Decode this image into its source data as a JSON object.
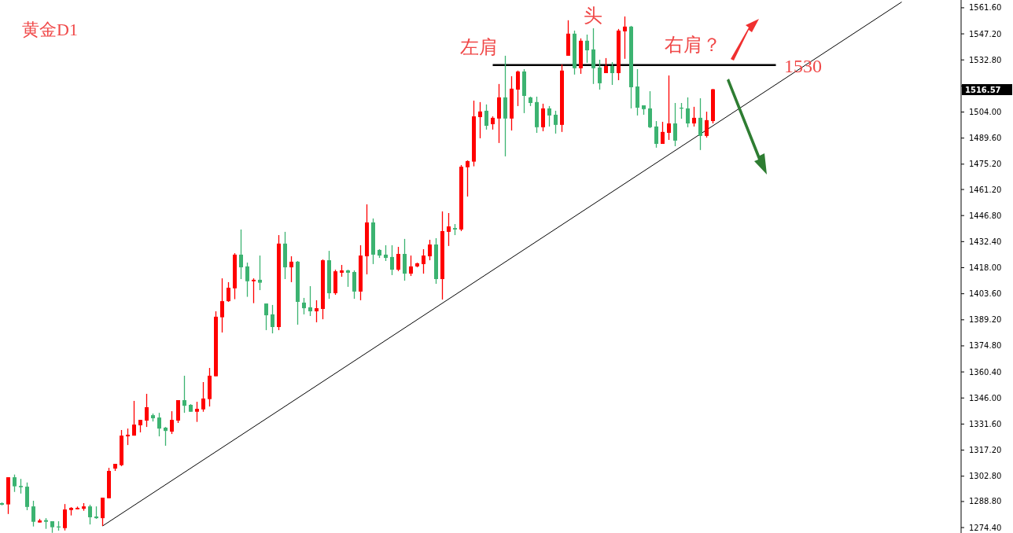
{
  "chart_data": {
    "type": "candlestick",
    "title": "黄金D1",
    "categories": [
      null,
      null,
      null,
      null,
      null,
      null,
      null,
      null,
      null,
      null,
      null,
      null,
      null,
      null,
      null,
      null,
      null,
      null,
      null,
      null,
      null,
      null,
      null,
      null,
      null,
      null,
      null,
      null,
      null,
      null,
      null,
      null,
      null,
      null,
      null,
      null,
      null,
      null,
      null,
      null,
      null,
      null,
      null,
      null,
      null,
      null,
      null,
      null,
      null,
      null,
      null,
      null,
      null,
      null,
      null,
      null,
      null,
      null,
      null,
      null,
      null,
      null,
      null,
      null,
      null,
      null,
      null,
      null,
      null,
      null,
      null,
      null,
      null,
      null,
      null,
      null,
      null,
      null,
      null,
      null,
      null,
      null,
      null,
      null,
      null,
      null,
      null,
      null,
      null,
      null,
      null,
      null,
      null,
      null,
      null,
      null,
      null,
      null,
      null,
      null,
      null,
      null,
      null,
      null,
      null,
      null,
      null,
      null,
      null,
      null,
      null,
      null,
      null,
      null,
      null,
      null,
      null,
      null,
      null,
      null,
      null,
      null,
      null,
      null,
      null,
      null,
      null,
      null,
      null,
      null,
      null,
      null,
      null,
      null,
      null,
      null,
      null,
      null,
      null,
      null,
      null,
      null,
      null,
      null,
      null,
      null,
      null,
      null,
      null,
      null,
      null,
      null,
      null
    ],
    "ohlc": [
      [
        1287.9,
        1288.3,
        1286.7,
        1287.0
      ],
      [
        1287.2,
        1302.2,
        1281.9,
        1302.2
      ],
      [
        1302.2,
        1303.7,
        1294.1,
        1297.2
      ],
      [
        1297.4,
        1301.3,
        1293.2,
        1296.7
      ],
      [
        1297.0,
        1299.3,
        1284.0,
        1285.8
      ],
      [
        1286.1,
        1289.2,
        1275.0,
        1277.6
      ],
      [
        1277.2,
        1279.2,
        1277.2,
        1278.3
      ],
      [
        1278.5,
        1279.6,
        1273.7,
        1277.6
      ],
      [
        1277.9,
        1277.9,
        1271.5,
        1274.6
      ],
      [
        1275.0,
        1277.9,
        1272.7,
        1274.6
      ],
      [
        1274.1,
        1287.4,
        1272.8,
        1284.4
      ],
      [
        1284.1,
        1285.7,
        1281.1,
        1285.3
      ],
      [
        1284.5,
        1286.0,
        1284.5,
        1285.3
      ],
      [
        1284.8,
        1287.9,
        1283.7,
        1286.1
      ],
      [
        1286.1,
        1287.0,
        1276.1,
        1280.1
      ],
      [
        1280.5,
        1286.1,
        1279.2,
        1279.6
      ],
      [
        1279.6,
        1290.9,
        1275.3,
        1290.9
      ],
      [
        1290.6,
        1307.4,
        1290.6,
        1305.7
      ],
      [
        1307.0,
        1309.6,
        1305.7,
        1309.6
      ],
      [
        1308.9,
        1328.3,
        1308.3,
        1325.2
      ],
      [
        1324.8,
        1329.1,
        1320.0,
        1325.7
      ],
      [
        1325.2,
        1344.4,
        1325.2,
        1331.3
      ],
      [
        1330.9,
        1333.9,
        1327.0,
        1333.9
      ],
      [
        1333.5,
        1348.3,
        1330.0,
        1340.9
      ],
      [
        1336.5,
        1337.4,
        1333.0,
        1334.8
      ],
      [
        1335.2,
        1337.8,
        1324.8,
        1329.1
      ],
      [
        1329.6,
        1330.0,
        1319.6,
        1327.8
      ],
      [
        1327.4,
        1338.7,
        1326.1,
        1333.9
      ],
      [
        1333.5,
        1344.8,
        1332.2,
        1344.8
      ],
      [
        1344.8,
        1358.3,
        1337.8,
        1341.7
      ],
      [
        1342.2,
        1342.6,
        1338.4,
        1338.4
      ],
      [
        1338.4,
        1343.9,
        1332.8,
        1340.0
      ],
      [
        1339.7,
        1354.8,
        1338.4,
        1345.7
      ],
      [
        1345.4,
        1362.6,
        1341.3,
        1358.3
      ],
      [
        1358.0,
        1393.9,
        1358.0,
        1390.9
      ],
      [
        1390.6,
        1412.1,
        1382.2,
        1399.5
      ],
      [
        1399.5,
        1410.0,
        1399.1,
        1406.9
      ],
      [
        1406.6,
        1426.0,
        1400.6,
        1425.2
      ],
      [
        1425.2,
        1439.1,
        1411.7,
        1418.2
      ],
      [
        1418.7,
        1420.8,
        1401.9,
        1410.5
      ],
      [
        1410.5,
        1412.1,
        1398.4,
        1411.3
      ],
      [
        1411.3,
        1424.7,
        1405.6,
        1409.7
      ],
      [
        1398.2,
        1398.2,
        1383.5,
        1391.7
      ],
      [
        1392.2,
        1397.4,
        1381.7,
        1385.2
      ],
      [
        1385.2,
        1436.0,
        1383.5,
        1431.3
      ],
      [
        1431.3,
        1437.8,
        1411.7,
        1418.2
      ],
      [
        1418.2,
        1424.3,
        1410.0,
        1421.3
      ],
      [
        1421.3,
        1421.7,
        1386.5,
        1399.1
      ],
      [
        1398.7,
        1401.3,
        1392.2,
        1395.6
      ],
      [
        1396.1,
        1407.8,
        1391.3,
        1393.9
      ],
      [
        1393.9,
        1400.0,
        1387.8,
        1395.6
      ],
      [
        1395.2,
        1422.6,
        1389.5,
        1422.1
      ],
      [
        1422.1,
        1427.3,
        1400.8,
        1403.9
      ],
      [
        1403.9,
        1416.9,
        1403.0,
        1416.0
      ],
      [
        1415.2,
        1419.5,
        1413.0,
        1416.5
      ],
      [
        1416.5,
        1416.9,
        1407.4,
        1415.2
      ],
      [
        1415.6,
        1416.5,
        1400.8,
        1404.8
      ],
      [
        1404.8,
        1430.4,
        1400.0,
        1424.7
      ],
      [
        1424.3,
        1453.0,
        1414.3,
        1443.0
      ],
      [
        1443.0,
        1445.2,
        1420.0,
        1425.2
      ],
      [
        1427.8,
        1428.2,
        1423.4,
        1424.7
      ],
      [
        1425.2,
        1430.4,
        1421.7,
        1423.4
      ],
      [
        1423.9,
        1430.4,
        1413.9,
        1416.9
      ],
      [
        1416.9,
        1429.5,
        1416.1,
        1425.6
      ],
      [
        1425.6,
        1433.9,
        1410.8,
        1414.7
      ],
      [
        1414.7,
        1424.7,
        1413.4,
        1418.7
      ],
      [
        1418.7,
        1420.8,
        1418.2,
        1420.4
      ],
      [
        1420.0,
        1428.2,
        1414.7,
        1424.7
      ],
      [
        1424.3,
        1433.4,
        1422.1,
        1430.8
      ],
      [
        1430.8,
        1434.3,
        1409.1,
        1411.7
      ],
      [
        1411.7,
        1449.1,
        1400.4,
        1438.2
      ],
      [
        1437.8,
        1448.2,
        1430.0,
        1440.8
      ],
      [
        1439.9,
        1442.1,
        1436.0,
        1439.1
      ],
      [
        1439.1,
        1474.7,
        1438.2,
        1473.8
      ],
      [
        1473.5,
        1477.3,
        1457.3,
        1476.9
      ],
      [
        1476.6,
        1510.3,
        1474.0,
        1501.6
      ],
      [
        1501.2,
        1509.5,
        1489.5,
        1504.3
      ],
      [
        1504.7,
        1508.2,
        1494.3,
        1496.4
      ],
      [
        1497.3,
        1501.6,
        1494.3,
        1500.8
      ],
      [
        1500.4,
        1519.5,
        1486.9,
        1512.1
      ],
      [
        1512.1,
        1535.1,
        1479.5,
        1500.4
      ],
      [
        1500.4,
        1523.8,
        1493.8,
        1516.9
      ],
      [
        1516.4,
        1526.9,
        1507.3,
        1526.4
      ],
      [
        1526.4,
        1527.7,
        1503.4,
        1512.9
      ],
      [
        1512.1,
        1512.5,
        1507.3,
        1509.0
      ],
      [
        1509.5,
        1512.5,
        1492.5,
        1495.6
      ],
      [
        1495.6,
        1508.6,
        1493.4,
        1506.0
      ],
      [
        1506.0,
        1507.3,
        1496.0,
        1502.1
      ],
      [
        1502.5,
        1504.7,
        1492.1,
        1496.9
      ],
      [
        1496.9,
        1530.3,
        1493.0,
        1526.9
      ],
      [
        1535.1,
        1554.7,
        1535.1,
        1547.3
      ],
      [
        1547.3,
        1549.0,
        1524.7,
        1528.2
      ],
      [
        1528.2,
        1544.7,
        1525.1,
        1543.4
      ],
      [
        1543.4,
        1546.8,
        1531.2,
        1538.1
      ],
      [
        1538.6,
        1550.3,
        1519.5,
        1528.2
      ],
      [
        1528.6,
        1532.9,
        1516.4,
        1519.9
      ],
      [
        1525.5,
        1533.8,
        1525.5,
        1529.4
      ],
      [
        1529.4,
        1531.6,
        1519.0,
        1525.5
      ],
      [
        1525.5,
        1549.9,
        1521.6,
        1549.0
      ],
      [
        1548.6,
        1556.8,
        1533.4,
        1551.2
      ],
      [
        1551.2,
        1551.6,
        1506.0,
        1517.7
      ],
      [
        1518.1,
        1527.7,
        1502.1,
        1506.4
      ],
      [
        1507.7,
        1507.7,
        1502.5,
        1505.6
      ],
      [
        1506.0,
        1515.5,
        1495.1,
        1495.6
      ],
      [
        1496.0,
        1499.0,
        1484.3,
        1486.4
      ],
      [
        1486.4,
        1498.6,
        1486.4,
        1493.0
      ],
      [
        1492.5,
        1524.2,
        1488.6,
        1497.7
      ],
      [
        1497.7,
        1509.0,
        1485.1,
        1488.2
      ],
      [
        1506.4,
        1509.0,
        1500.3,
        1506.0
      ],
      [
        1506.0,
        1512.1,
        1495.6,
        1497.7
      ],
      [
        1497.7,
        1506.9,
        1496.0,
        1500.8
      ],
      [
        1500.8,
        1511.6,
        1483.0,
        1490.8
      ],
      [
        1490.8,
        1504.2,
        1489.9,
        1499.5
      ],
      [
        1499.0,
        1516.8,
        1497.7,
        1516.57
      ],
      null,
      null,
      null,
      null,
      null,
      null,
      null,
      null,
      null,
      null,
      null,
      null,
      null,
      null,
      null,
      null,
      null,
      null,
      null,
      null,
      null,
      null,
      null,
      null,
      null,
      null,
      null,
      null,
      null,
      null,
      null,
      null,
      null,
      null,
      null,
      null,
      null,
      null,
      null
    ],
    "colors": [
      "#3cb371",
      "#ff0000",
      "#3cb371",
      "#3cb371",
      "#3cb371",
      "#3cb371",
      "#ff0000",
      "#3cb371",
      "#3cb371",
      "#3cb371",
      "#ff0000",
      "#ff0000",
      "#ff0000",
      "#ff0000",
      "#3cb371",
      "#3cb371",
      "#ff0000",
      "#ff0000",
      "#ff0000",
      "#ff0000",
      "#ff0000",
      "#ff0000",
      "#ff0000",
      "#ff0000",
      "#3cb371",
      "#3cb371",
      "#3cb371",
      "#ff0000",
      "#ff0000",
      "#3cb371",
      "#3cb371",
      "#ff0000",
      "#ff0000",
      "#ff0000",
      "#ff0000",
      "#ff0000",
      "#ff0000",
      "#ff0000",
      "#3cb371",
      "#3cb371",
      "#ff0000",
      "#3cb371",
      "#3cb371",
      "#3cb371",
      "#ff0000",
      "#3cb371",
      "#ff0000",
      "#3cb371",
      "#3cb371",
      "#3cb371",
      "#ff0000",
      "#ff0000",
      "#3cb371",
      "#ff0000",
      "#ff0000",
      "#3cb371",
      "#3cb371",
      "#ff0000",
      "#ff0000",
      "#3cb371",
      "#3cb371",
      "#3cb371",
      "#3cb371",
      "#ff0000",
      "#3cb371",
      "#ff0000",
      "#ff0000",
      "#ff0000",
      "#ff0000",
      "#3cb371",
      "#ff0000",
      "#ff0000",
      "#3cb371",
      "#ff0000",
      "#ff0000",
      "#ff0000",
      "#ff0000",
      "#3cb371",
      "#ff0000",
      "#ff0000",
      "#3cb371",
      "#ff0000",
      "#ff0000",
      "#3cb371",
      "#3cb371",
      "#3cb371",
      "#ff0000",
      "#3cb371",
      "#3cb371",
      "#ff0000",
      "#ff0000",
      "#3cb371",
      "#ff0000",
      "#3cb371",
      "#3cb371",
      "#3cb371",
      "#ff0000",
      "#3cb371",
      "#ff0000",
      "#ff0000",
      "#3cb371",
      "#3cb371",
      "#3cb371",
      "#3cb371",
      "#3cb371",
      "#ff0000",
      "#ff0000",
      "#3cb371",
      "#3cb371",
      "#3cb371",
      "#ff0000",
      "#3cb371",
      "#ff0000",
      "#ff0000",
      null,
      null,
      null,
      null,
      null,
      null,
      null,
      null,
      null,
      null,
      null,
      null,
      null,
      null,
      null,
      null,
      null,
      null,
      null,
      null,
      null,
      null,
      null,
      null,
      null,
      null,
      null,
      null,
      null,
      null,
      null,
      null,
      null,
      null,
      null,
      null,
      null,
      null,
      null
    ],
    "series": [
      {
        "type": "line",
        "values": [
          null,
          null,
          null,
          null,
          null,
          null,
          null,
          null,
          null,
          null,
          null,
          null,
          null,
          null,
          null,
          null,
          1275.3,
          null,
          null,
          null,
          null,
          null,
          null,
          null,
          null,
          null,
          null,
          null,
          null,
          null,
          null,
          null,
          null,
          null,
          null,
          null,
          null,
          null,
          null,
          null,
          null,
          null,
          null,
          null,
          null,
          null,
          null,
          null,
          null,
          null,
          null,
          null,
          null,
          null,
          null,
          null,
          null,
          null,
          null,
          null,
          null,
          null,
          null,
          null,
          null,
          null,
          null,
          null,
          null,
          null,
          null,
          null,
          null,
          null,
          null,
          null,
          null,
          null,
          null,
          null,
          null,
          null,
          null,
          null,
          null,
          null,
          null,
          null,
          null,
          null,
          null,
          null,
          null,
          null,
          null,
          null,
          null,
          null,
          null,
          null,
          null,
          null,
          null,
          null,
          null,
          null,
          null,
          null,
          null,
          null,
          null,
          null,
          null,
          null,
          null,
          null,
          null,
          null,
          null,
          null,
          null,
          null,
          null,
          null,
          null,
          null,
          null,
          null,
          null,
          null,
          null,
          null,
          null,
          null,
          null,
          null,
          null,
          null,
          null,
          null,
          null,
          null,
          null,
          1564.8,
          null,
          null,
          null,
          null,
          null,
          null,
          null,
          null,
          null
        ],
        "color": "#000000"
      },
      {
        "type": "line",
        "values": [
          null,
          null,
          null,
          null,
          null,
          null,
          null,
          null,
          null,
          null,
          null,
          null,
          null,
          null,
          null,
          null,
          null,
          null,
          null,
          null,
          null,
          null,
          null,
          null,
          null,
          null,
          null,
          null,
          null,
          null,
          null,
          null,
          null,
          null,
          null,
          null,
          null,
          null,
          null,
          null,
          null,
          null,
          null,
          null,
          null,
          null,
          null,
          null,
          null,
          null,
          null,
          null,
          null,
          null,
          null,
          null,
          null,
          null,
          null,
          null,
          null,
          null,
          null,
          null,
          null,
          null,
          null,
          null,
          null,
          null,
          null,
          null,
          null,
          null,
          null,
          null,
          null,
          null,
          1530,
          null,
          null,
          null,
          null,
          null,
          null,
          null,
          null,
          null,
          null,
          null,
          null,
          null,
          null,
          null,
          null,
          null,
          null,
          null,
          null,
          null,
          null,
          null,
          null,
          null,
          null,
          null,
          null,
          null,
          null,
          null,
          null,
          null,
          null,
          null,
          null,
          null,
          null,
          null,
          null,
          null,
          null,
          null,
          null,
          1530,
          null,
          null,
          null,
          null,
          null,
          null,
          null,
          null,
          null,
          null,
          null,
          null,
          null,
          null,
          null,
          null,
          null,
          null,
          null,
          null,
          null,
          null,
          null,
          null,
          null,
          null,
          null,
          null,
          null
        ],
        "color": "#000000"
      }
    ],
    "annotations": [
      "左肩",
      "头",
      "右肩？",
      "1530",
      "1516.57"
    ],
    "ylim": [
      1271.4,
      1565.9
    ],
    "yticks": [
      {
        "value": 1274.4,
        "label": "1274.40"
      },
      {
        "value": 1288.8,
        "label": "1288.80"
      },
      {
        "value": 1302.8,
        "label": "1302.80"
      },
      {
        "value": 1317.2,
        "label": "1317.20"
      },
      {
        "value": 1331.6,
        "label": "1331.60"
      },
      {
        "value": 1346,
        "label": "1346.00"
      },
      {
        "value": 1360.4,
        "label": "1360.40"
      },
      {
        "value": 1374.8,
        "label": "1374.80"
      },
      {
        "value": 1389.2,
        "label": "1389.20"
      },
      {
        "value": 1403.6,
        "label": "1403.60"
      },
      {
        "value": 1418,
        "label": "1418.00"
      },
      {
        "value": 1432.4,
        "label": "1432.40"
      },
      {
        "value": 1446.8,
        "label": "1446.80"
      },
      {
        "value": 1461.2,
        "label": "1461.20"
      },
      {
        "value": 1475.2,
        "label": "1475.20"
      },
      {
        "value": 1489.6,
        "label": "1489.60"
      },
      {
        "value": 1504,
        "label": "1504.00"
      },
      {
        "value": 1518.4,
        "label": null
      },
      {
        "value": 1532.8,
        "label": "1532.80"
      },
      {
        "value": 1547.2,
        "label": "1547.20"
      },
      {
        "value": 1561.6,
        "label": "1561.60"
      }
    ],
    "tick_labels": "y",
    "grid": false
  }
}
